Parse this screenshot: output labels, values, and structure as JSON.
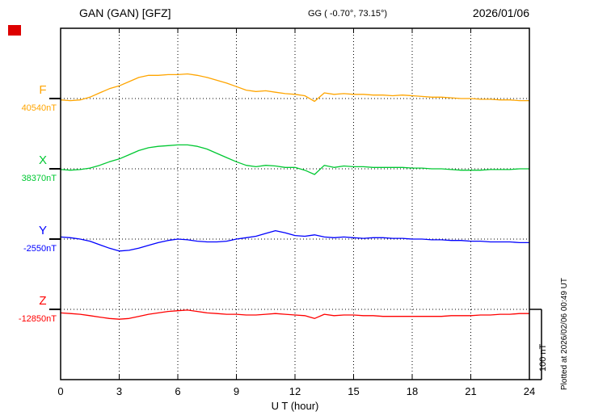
{
  "header": {
    "title": "GAN (GAN)  [GFZ]",
    "coords": "GG ( -0.70°,  73.15°)",
    "date": "2026/01/06"
  },
  "footer": {
    "xlabel": "U T (hour)"
  },
  "side": {
    "plotted_at": "Plotted at 2026/02/06 00:49 UT",
    "scale_label": "100 nT"
  },
  "chart_data": {
    "type": "line",
    "title": "GAN (GAN) [GFZ] magnetogram",
    "xlabel": "U T (hour)",
    "x_range": [
      0,
      24
    ],
    "x_ticks": [
      0,
      3,
      6,
      9,
      12,
      15,
      18,
      21,
      24
    ],
    "x_step_hours": 0.5,
    "scale_bar": {
      "label": "100 nT",
      "nT": 100
    },
    "grid": "dotted-vertical-at-3h, dotted-baseline-per-trace",
    "series": [
      {
        "name": "F",
        "baseline_label": "40540nT",
        "baseline_nT": 40540,
        "color": "#ffa500",
        "offsets_nT": [
          -2,
          -3,
          -2,
          2,
          8,
          14,
          18,
          24,
          30,
          33,
          33,
          34,
          34,
          35,
          33,
          30,
          26,
          22,
          17,
          12,
          10,
          11,
          9,
          7,
          6,
          4,
          -4,
          8,
          6,
          7,
          6,
          6,
          5,
          5,
          4,
          5,
          4,
          3,
          2,
          2,
          1,
          0,
          0,
          -1,
          -1,
          -2,
          -2,
          -3,
          -3
        ]
      },
      {
        "name": "X",
        "baseline_label": "38370nT",
        "baseline_nT": 38370,
        "color": "#00c832",
        "offsets_nT": [
          -1,
          -2,
          -1,
          1,
          5,
          10,
          14,
          20,
          26,
          30,
          32,
          33,
          34,
          34,
          32,
          28,
          22,
          16,
          10,
          5,
          3,
          5,
          4,
          2,
          2,
          -2,
          -8,
          5,
          2,
          4,
          3,
          3,
          2,
          2,
          2,
          2,
          1,
          1,
          0,
          0,
          -1,
          -2,
          -2,
          -2,
          -1,
          -1,
          -1,
          0,
          0
        ]
      },
      {
        "name": "Y",
        "baseline_label": "-2550nT",
        "baseline_nT": -2550,
        "color": "#0000ff",
        "offsets_nT": [
          3,
          2,
          0,
          -3,
          -8,
          -13,
          -17,
          -16,
          -13,
          -9,
          -5,
          -2,
          0,
          -1,
          -3,
          -4,
          -4,
          -3,
          0,
          2,
          4,
          8,
          12,
          9,
          5,
          4,
          6,
          3,
          2,
          3,
          2,
          1,
          2,
          2,
          1,
          1,
          0,
          0,
          -1,
          -1,
          -2,
          -2,
          -3,
          -3,
          -4,
          -4,
          -4,
          -5,
          -5
        ]
      },
      {
        "name": "Z",
        "baseline_label": "-12850nT",
        "baseline_nT": -12850,
        "color": "#ff0000",
        "offsets_nT": [
          -5,
          -6,
          -7,
          -9,
          -11,
          -13,
          -14,
          -13,
          -10,
          -7,
          -5,
          -3,
          -2,
          -1,
          -3,
          -5,
          -6,
          -7,
          -7,
          -8,
          -8,
          -7,
          -6,
          -7,
          -8,
          -9,
          -13,
          -7,
          -9,
          -8,
          -8,
          -9,
          -9,
          -10,
          -10,
          -10,
          -10,
          -10,
          -10,
          -10,
          -9,
          -9,
          -9,
          -8,
          -8,
          -7,
          -7,
          -6,
          -6
        ]
      }
    ]
  }
}
